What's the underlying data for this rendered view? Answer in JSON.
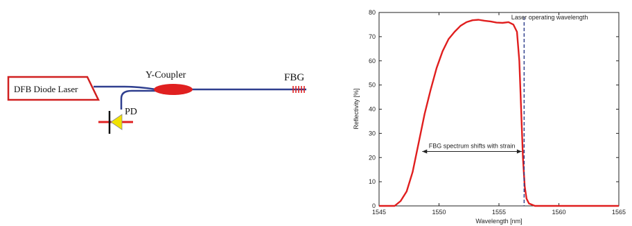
{
  "diagram": {
    "laser_label": "DFB Diode Laser",
    "coupler_label": "Y-Coupler",
    "fbg_label": "FBG",
    "pd_label": "PD",
    "colors": {
      "fiber": "#2f3f8f",
      "red": "#e02020",
      "diode": "#f2e200",
      "laser_box_stroke": "#d02020"
    }
  },
  "chart_data": {
    "type": "line",
    "title": "",
    "xlabel": "Wavelength  [nm]",
    "ylabel": "Reflectivity [%]",
    "xlim": [
      1545,
      1565
    ],
    "ylim": [
      0,
      80
    ],
    "xticks": [
      1545,
      1550,
      1555,
      1560,
      1565
    ],
    "yticks": [
      0,
      10,
      20,
      30,
      40,
      50,
      60,
      70,
      80
    ],
    "grid": false,
    "series": [
      {
        "name": "",
        "color": "#e01e1e",
        "x": [
          1545,
          1546.3,
          1546.8,
          1547.3,
          1547.8,
          1548.3,
          1548.8,
          1549.3,
          1549.8,
          1550.3,
          1550.8,
          1551.3,
          1551.8,
          1552.3,
          1552.8,
          1553.3,
          1553.8,
          1554.3,
          1554.8,
          1555.3,
          1555.8,
          1556.2,
          1556.5,
          1556.7,
          1556.85,
          1557.0,
          1557.15,
          1557.3,
          1557.5,
          1558,
          1565
        ],
        "y": [
          0,
          0,
          2,
          6,
          14,
          26,
          38,
          48,
          57,
          64,
          69,
          72,
          74.5,
          76,
          76.8,
          77,
          76.6,
          76.3,
          75.8,
          75.7,
          76,
          75,
          72,
          60,
          40,
          20,
          8,
          3,
          1,
          0,
          0
        ]
      }
    ],
    "vline": {
      "x": 1557.1,
      "style": "dashed",
      "color": "#2a3a8a"
    },
    "annotations": [
      {
        "text": "Laser operating wavelength",
        "x": 1557.3,
        "y": 78
      },
      {
        "text": "FBG spectrum shifts with strain",
        "x_from": 1548.6,
        "x_to": 1556.9,
        "y": 22.5
      }
    ]
  }
}
